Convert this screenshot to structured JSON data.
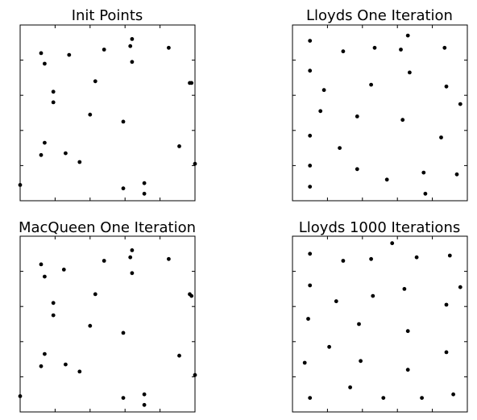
{
  "chart_data": [
    {
      "type": "scatter",
      "title": "Init Points",
      "xlim": [
        0,
        1
      ],
      "ylim": [
        0,
        1
      ],
      "color": "#000000",
      "points": [
        [
          0.0,
          0.09
        ],
        [
          0.12,
          0.84
        ],
        [
          0.14,
          0.78
        ],
        [
          0.28,
          0.83
        ],
        [
          0.48,
          0.86
        ],
        [
          0.63,
          0.88
        ],
        [
          0.64,
          0.92
        ],
        [
          0.64,
          0.79
        ],
        [
          0.85,
          0.87
        ],
        [
          0.98,
          0.67
        ],
        [
          0.97,
          0.67
        ],
        [
          0.43,
          0.68
        ],
        [
          0.19,
          0.62
        ],
        [
          0.19,
          0.56
        ],
        [
          0.4,
          0.49
        ],
        [
          0.59,
          0.45
        ],
        [
          0.14,
          0.33
        ],
        [
          0.12,
          0.26
        ],
        [
          0.26,
          0.27
        ],
        [
          0.34,
          0.22
        ],
        [
          0.91,
          0.31
        ],
        [
          1.0,
          0.21
        ],
        [
          0.59,
          0.07
        ],
        [
          0.71,
          0.1
        ],
        [
          0.71,
          0.04
        ]
      ]
    },
    {
      "type": "scatter",
      "title": "Lloyds One Iteration",
      "xlim": [
        0,
        1
      ],
      "ylim": [
        0,
        1
      ],
      "color": "#000000",
      "points": [
        [
          0.1,
          0.91
        ],
        [
          0.29,
          0.85
        ],
        [
          0.47,
          0.87
        ],
        [
          0.62,
          0.86
        ],
        [
          0.66,
          0.94
        ],
        [
          0.87,
          0.87
        ],
        [
          0.1,
          0.74
        ],
        [
          0.67,
          0.73
        ],
        [
          0.45,
          0.66
        ],
        [
          0.18,
          0.63
        ],
        [
          0.88,
          0.65
        ],
        [
          0.96,
          0.55
        ],
        [
          0.16,
          0.51
        ],
        [
          0.37,
          0.48
        ],
        [
          0.63,
          0.46
        ],
        [
          0.1,
          0.37
        ],
        [
          0.85,
          0.36
        ],
        [
          0.27,
          0.3
        ],
        [
          0.1,
          0.2
        ],
        [
          0.37,
          0.18
        ],
        [
          0.54,
          0.12
        ],
        [
          0.75,
          0.16
        ],
        [
          0.94,
          0.15
        ],
        [
          0.1,
          0.08
        ],
        [
          0.76,
          0.04
        ]
      ]
    },
    {
      "type": "scatter",
      "title": "MacQueen One Iteration",
      "xlim": [
        0,
        1
      ],
      "ylim": [
        0,
        1
      ],
      "color": "#000000",
      "points": [
        [
          0.0,
          0.09
        ],
        [
          0.12,
          0.84
        ],
        [
          0.14,
          0.77
        ],
        [
          0.25,
          0.81
        ],
        [
          0.48,
          0.86
        ],
        [
          0.63,
          0.88
        ],
        [
          0.64,
          0.92
        ],
        [
          0.64,
          0.79
        ],
        [
          0.85,
          0.87
        ],
        [
          0.97,
          0.67
        ],
        [
          0.98,
          0.66
        ],
        [
          0.43,
          0.67
        ],
        [
          0.19,
          0.62
        ],
        [
          0.19,
          0.55
        ],
        [
          0.4,
          0.49
        ],
        [
          0.59,
          0.45
        ],
        [
          0.14,
          0.33
        ],
        [
          0.12,
          0.26
        ],
        [
          0.26,
          0.27
        ],
        [
          0.34,
          0.23
        ],
        [
          0.91,
          0.32
        ],
        [
          1.0,
          0.21
        ],
        [
          0.59,
          0.08
        ],
        [
          0.71,
          0.1
        ],
        [
          0.71,
          0.04
        ]
      ]
    },
    {
      "type": "scatter",
      "title": "Lloyds 1000 Iterations",
      "xlim": [
        0,
        1
      ],
      "ylim": [
        0,
        1
      ],
      "color": "#000000",
      "points": [
        [
          0.1,
          0.9
        ],
        [
          0.29,
          0.86
        ],
        [
          0.45,
          0.87
        ],
        [
          0.57,
          0.96
        ],
        [
          0.71,
          0.88
        ],
        [
          0.9,
          0.89
        ],
        [
          0.1,
          0.72
        ],
        [
          0.64,
          0.7
        ],
        [
          0.46,
          0.66
        ],
        [
          0.25,
          0.63
        ],
        [
          0.96,
          0.71
        ],
        [
          0.88,
          0.61
        ],
        [
          0.09,
          0.53
        ],
        [
          0.38,
          0.5
        ],
        [
          0.66,
          0.46
        ],
        [
          0.21,
          0.37
        ],
        [
          0.39,
          0.29
        ],
        [
          0.88,
          0.34
        ],
        [
          0.07,
          0.28
        ],
        [
          0.66,
          0.24
        ],
        [
          0.33,
          0.14
        ],
        [
          0.1,
          0.08
        ],
        [
          0.52,
          0.08
        ],
        [
          0.74,
          0.08
        ],
        [
          0.92,
          0.1
        ]
      ]
    }
  ]
}
